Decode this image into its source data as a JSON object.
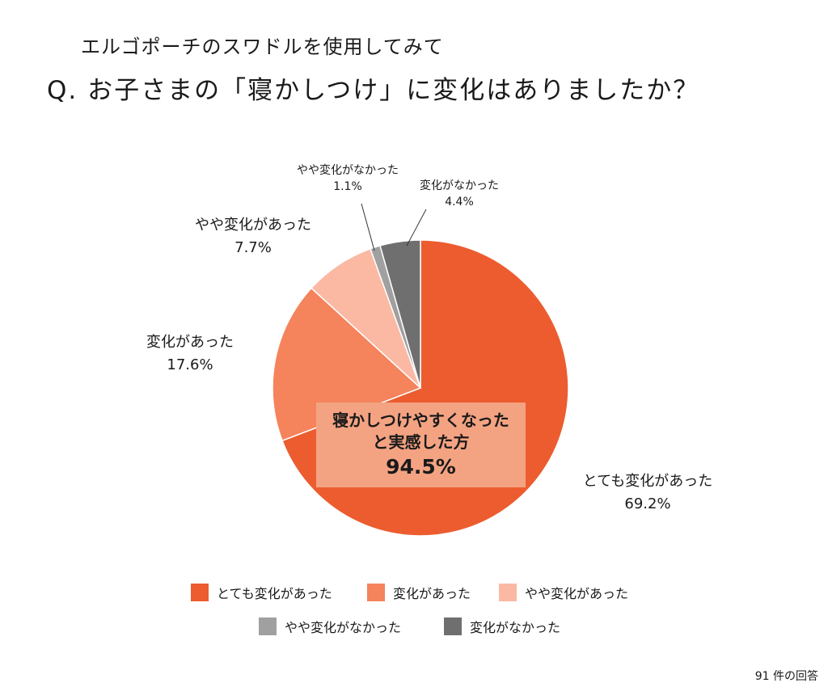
{
  "header": {
    "subtitle": "エルゴポーチのスワドルを使用してみて",
    "title": "Q. お子さまの「寝かしつけ」に変化はありましたか？"
  },
  "chart_data": {
    "type": "pie",
    "title": "Q. お子さまの「寝かしつけ」に変化はありましたか？",
    "slices": [
      {
        "label": "とても変化があった",
        "value": 69.2,
        "value_text": "69.2%",
        "color": "#ec5c2f"
      },
      {
        "label": "変化があった",
        "value": 17.6,
        "value_text": "17.6%",
        "color": "#f5835c"
      },
      {
        "label": "やや変化があった",
        "value": 7.7,
        "value_text": "7.7%",
        "color": "#fbb9a4"
      },
      {
        "label": "やや変化がなかった",
        "value": 1.1,
        "value_text": "1.1%",
        "color": "#a0a0a0"
      },
      {
        "label": "変化がなかった",
        "value": 4.4,
        "value_text": "4.4%",
        "color": "#6f6f6f"
      }
    ],
    "callout": {
      "line1": "寝かしつけやすくなった",
      "line2": "と実感した方",
      "value": "94.5%"
    },
    "legend": [
      [
        "とても変化があった",
        "変化があった",
        "やや変化があった"
      ],
      [
        "やや変化がなかった",
        "変化がなかった"
      ]
    ],
    "legend_position": "bottom"
  },
  "footnote": "91 件の回答"
}
